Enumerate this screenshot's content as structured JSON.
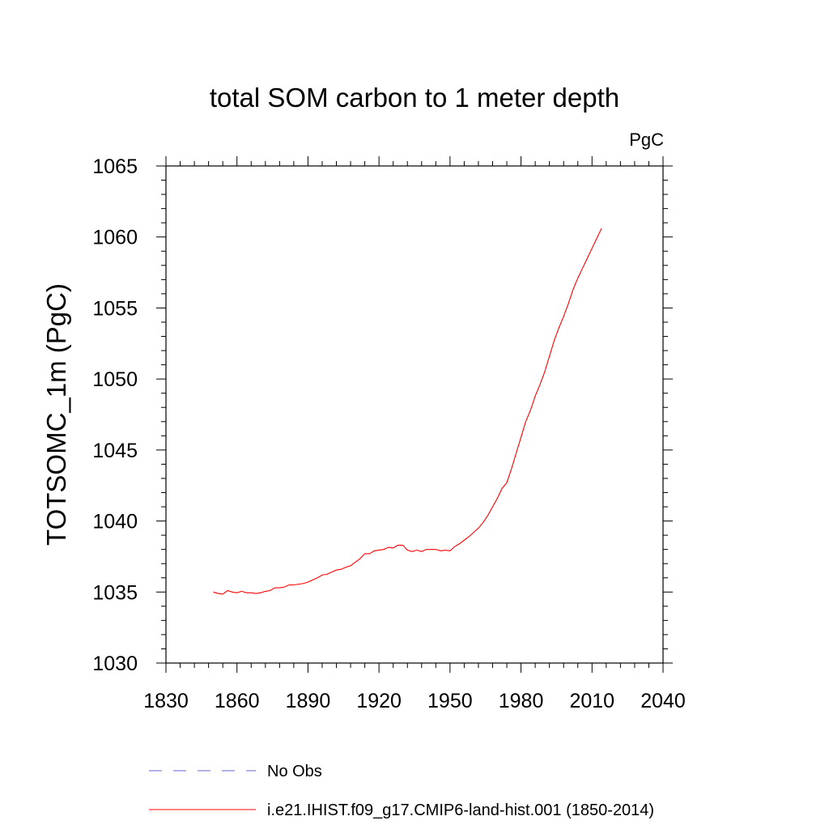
{
  "chart_data": {
    "type": "line",
    "title": "total SOM carbon to 1 meter depth",
    "units_label": "PgC",
    "ylabel": "TOTSOMC_1m  (PgC)",
    "xlabel": "",
    "xlim": [
      1830,
      2040
    ],
    "ylim": [
      1030,
      1065
    ],
    "xticks": [
      1830,
      1860,
      1890,
      1920,
      1950,
      1980,
      2010,
      2040
    ],
    "yticks": [
      1030,
      1035,
      1040,
      1045,
      1050,
      1055,
      1060,
      1065
    ],
    "grid": false,
    "legend_position": "bottom",
    "series": [
      {
        "name": "No Obs",
        "color": "#6666cc",
        "style": "dashed",
        "x": [],
        "y": []
      },
      {
        "name": "i.e21.IHIST.f09_g17.CMIP6-land-hist.001 (1850-2014)",
        "color": "#ff0000",
        "style": "solid",
        "x": [
          1850,
          1852,
          1854,
          1856,
          1858,
          1860,
          1862,
          1864,
          1866,
          1868,
          1870,
          1872,
          1874,
          1876,
          1878,
          1880,
          1882,
          1884,
          1886,
          1888,
          1890,
          1892,
          1894,
          1896,
          1898,
          1900,
          1902,
          1904,
          1906,
          1908,
          1910,
          1912,
          1914,
          1916,
          1918,
          1920,
          1922,
          1924,
          1926,
          1928,
          1930,
          1932,
          1934,
          1936,
          1938,
          1940,
          1942,
          1944,
          1946,
          1948,
          1950,
          1952,
          1954,
          1956,
          1958,
          1960,
          1962,
          1964,
          1966,
          1968,
          1970,
          1972,
          1974,
          1976,
          1978,
          1980,
          1982,
          1984,
          1986,
          1988,
          1990,
          1992,
          1994,
          1996,
          1998,
          2000,
          2002,
          2004,
          2006,
          2008,
          2010,
          2012,
          2014
        ],
        "y": [
          1035.0,
          1034.9,
          1034.85,
          1035.1,
          1035.0,
          1034.95,
          1035.05,
          1034.95,
          1034.95,
          1034.9,
          1034.95,
          1035.05,
          1035.1,
          1035.3,
          1035.3,
          1035.35,
          1035.5,
          1035.5,
          1035.55,
          1035.6,
          1035.7,
          1035.85,
          1036.0,
          1036.2,
          1036.25,
          1036.4,
          1036.55,
          1036.6,
          1036.75,
          1036.85,
          1037.1,
          1037.35,
          1037.7,
          1037.7,
          1037.9,
          1037.95,
          1038.0,
          1038.15,
          1038.1,
          1038.3,
          1038.3,
          1037.95,
          1037.85,
          1037.95,
          1037.85,
          1038.0,
          1038.0,
          1038.0,
          1037.9,
          1037.95,
          1037.9,
          1038.2,
          1038.4,
          1038.65,
          1038.9,
          1039.2,
          1039.5,
          1039.9,
          1040.4,
          1041.0,
          1041.6,
          1042.3,
          1042.7,
          1043.7,
          1044.8,
          1045.9,
          1047.0,
          1047.8,
          1048.8,
          1049.6,
          1050.5,
          1051.6,
          1052.7,
          1053.6,
          1054.4,
          1055.3,
          1056.3,
          1057.1,
          1057.8,
          1058.5,
          1059.2,
          1059.9,
          1060.6
        ]
      }
    ]
  }
}
